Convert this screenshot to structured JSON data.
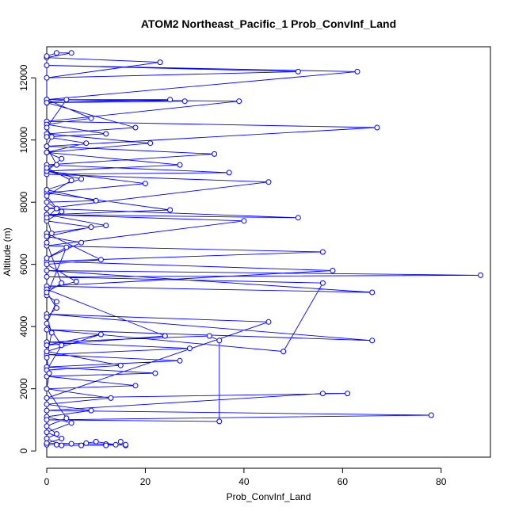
{
  "chart_data": {
    "type": "line",
    "title": "ATOM2 Northeast_Pacific_1 Prob_ConvInf_Land",
    "xlabel": "Prob_ConvInf_Land",
    "ylabel": "Altitude (m)",
    "xlim": [
      0,
      90
    ],
    "ylim": [
      -200,
      13000
    ],
    "xticks": [
      0,
      20,
      40,
      60,
      80
    ],
    "yticks": [
      0,
      2000,
      4000,
      6000,
      8000,
      10000,
      12000
    ],
    "grid": false,
    "legend": "none",
    "marker": "open-circle",
    "color": "#0000ff",
    "series": [
      {
        "points": [
          [
            0,
            200
          ],
          [
            2,
            200
          ],
          [
            5,
            230
          ],
          [
            8,
            250
          ],
          [
            10,
            300
          ],
          [
            14,
            200
          ],
          [
            16,
            180
          ],
          [
            12,
            220
          ],
          [
            0,
            250
          ],
          [
            3,
            400
          ],
          [
            0,
            600
          ],
          [
            5,
            900
          ],
          [
            0,
            1100
          ],
          [
            9,
            1300
          ],
          [
            0,
            1500
          ],
          [
            13,
            1700
          ],
          [
            0,
            2000
          ],
          [
            18,
            2100
          ],
          [
            0,
            2400
          ],
          [
            22,
            2500
          ],
          [
            0,
            2700
          ],
          [
            27,
            2900
          ],
          [
            0,
            3100
          ],
          [
            29,
            3300
          ],
          [
            0,
            3500
          ],
          [
            33,
            3700
          ],
          [
            35,
            3550
          ],
          [
            35,
            950
          ],
          [
            0,
            1000
          ],
          [
            78,
            1150
          ],
          [
            0,
            1300
          ],
          [
            56,
            1850
          ],
          [
            61,
            1850
          ],
          [
            0,
            1700
          ],
          [
            45,
            4150
          ],
          [
            0,
            4400
          ],
          [
            66,
            3550
          ],
          [
            0,
            3900
          ],
          [
            48,
            3200
          ],
          [
            56,
            5400
          ],
          [
            0,
            5600
          ],
          [
            88,
            5650
          ],
          [
            0,
            5800
          ],
          [
            66,
            5100
          ],
          [
            0,
            5300
          ],
          [
            58,
            5800
          ],
          [
            0,
            6100
          ],
          [
            56,
            6400
          ],
          [
            0,
            6600
          ],
          [
            40,
            7400
          ],
          [
            0,
            7600
          ],
          [
            51,
            7500
          ],
          [
            0,
            7800
          ],
          [
            45,
            8650
          ],
          [
            0,
            8900
          ],
          [
            37,
            8950
          ],
          [
            0,
            9200
          ],
          [
            34,
            9550
          ],
          [
            0,
            9800
          ],
          [
            67,
            10400
          ],
          [
            0,
            10600
          ],
          [
            39,
            11250
          ],
          [
            0,
            11300
          ],
          [
            63,
            12200
          ],
          [
            0,
            12400
          ],
          [
            51,
            12200
          ],
          [
            0,
            12000
          ],
          [
            23,
            12500
          ],
          [
            0,
            12650
          ],
          [
            5,
            12800
          ],
          [
            2,
            12800
          ],
          [
            0,
            12700
          ],
          [
            0,
            11300
          ],
          [
            25,
            11300
          ],
          [
            0,
            11200
          ],
          [
            18,
            10400
          ],
          [
            0,
            10200
          ],
          [
            21,
            9900
          ],
          [
            0,
            9600
          ],
          [
            27,
            9200
          ],
          [
            0,
            9000
          ],
          [
            20,
            8600
          ],
          [
            0,
            8300
          ],
          [
            25,
            7750
          ],
          [
            0,
            7600
          ],
          [
            12,
            7250
          ],
          [
            0,
            7000
          ],
          [
            11,
            6150
          ],
          [
            0,
            6000
          ],
          [
            6,
            5450
          ],
          [
            0,
            5200
          ],
          [
            24,
            3700
          ],
          [
            0,
            3400
          ],
          [
            11,
            3750
          ],
          [
            0,
            3200
          ],
          [
            15,
            2750
          ],
          [
            0,
            2600
          ],
          [
            3,
            3400
          ],
          [
            0,
            4100
          ],
          [
            2,
            4800
          ],
          [
            0,
            5000
          ],
          [
            4,
            6550
          ],
          [
            0,
            6200
          ],
          [
            7,
            6700
          ],
          [
            0,
            6900
          ],
          [
            9,
            7200
          ],
          [
            0,
            7400
          ],
          [
            3,
            7700
          ],
          [
            0,
            8000
          ],
          [
            10,
            8050
          ],
          [
            0,
            8400
          ],
          [
            7,
            8750
          ],
          [
            0,
            9000
          ],
          [
            3,
            9400
          ],
          [
            0,
            9600
          ],
          [
            8,
            9900
          ],
          [
            0,
            10100
          ],
          [
            12,
            10200
          ],
          [
            0,
            10500
          ],
          [
            9,
            10700
          ],
          [
            0,
            11300
          ],
          [
            28,
            11250
          ],
          [
            0,
            11200
          ],
          [
            4,
            11300
          ],
          [
            0,
            10400
          ],
          [
            1,
            10100
          ],
          [
            0,
            9800
          ],
          [
            2,
            9200
          ],
          [
            0,
            9100
          ],
          [
            5,
            8700
          ],
          [
            0,
            8200
          ],
          [
            2,
            7800
          ],
          [
            0,
            7500
          ],
          [
            1,
            7000
          ],
          [
            0,
            6700
          ],
          [
            3,
            5400
          ],
          [
            0,
            5100
          ],
          [
            2,
            4600
          ],
          [
            0,
            4300
          ],
          [
            1,
            3800
          ],
          [
            0,
            3000
          ],
          [
            0.5,
            2500
          ],
          [
            0,
            2000
          ],
          [
            4,
            1050
          ],
          [
            0,
            800
          ],
          [
            2,
            550
          ],
          [
            0,
            400
          ],
          [
            3,
            180
          ],
          [
            7,
            180
          ],
          [
            12,
            180
          ],
          [
            16,
            200
          ],
          [
            15,
            300
          ]
        ]
      }
    ]
  }
}
